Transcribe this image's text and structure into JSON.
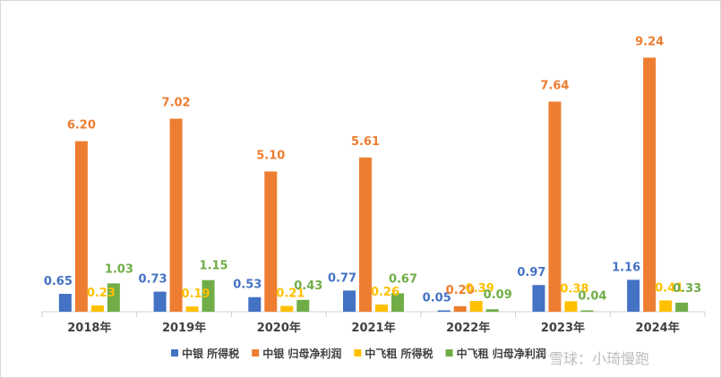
{
  "chart_data": {
    "type": "bar",
    "categories": [
      "2018年",
      "2019年",
      "2020年",
      "2021年",
      "2022年",
      "2023年",
      "2024年"
    ],
    "series": [
      {
        "name": "中银 所得税",
        "color": "#4472c4",
        "values": [
          0.65,
          0.73,
          0.53,
          0.77,
          0.05,
          0.97,
          1.16
        ],
        "labels": [
          "0.65",
          "0.73",
          "0.53",
          "0.77",
          "0.05",
          "0.97",
          "1.16"
        ]
      },
      {
        "name": "中银 归母净利润",
        "color": "#ed7d31",
        "values": [
          6.2,
          7.02,
          5.1,
          5.61,
          0.2,
          7.64,
          9.24
        ],
        "labels": [
          "6.20",
          "7.02",
          "5.10",
          "5.61",
          "0.20",
          "7.64",
          "9.24"
        ]
      },
      {
        "name": "中飞租 所得税",
        "color": "#ffc000",
        "values": [
          0.23,
          0.19,
          0.21,
          0.26,
          0.39,
          0.38,
          0.41
        ],
        "labels": [
          "0.23",
          "0.19",
          "0.21",
          "0.26",
          "0.39",
          "0.38",
          "0.41"
        ]
      },
      {
        "name": "中飞租 归母净利润",
        "color": "#70ad47",
        "values": [
          1.03,
          1.15,
          0.43,
          0.67,
          0.09,
          0.04,
          0.33
        ],
        "labels": [
          "1.03",
          "1.15",
          "0.43",
          "0.67",
          "0.09",
          "0.04",
          "0.33"
        ]
      }
    ],
    "legend_position": "bottom",
    "grid": false,
    "ylim": [
      0,
      10
    ]
  },
  "watermark": "雪球：小琦慢跑"
}
